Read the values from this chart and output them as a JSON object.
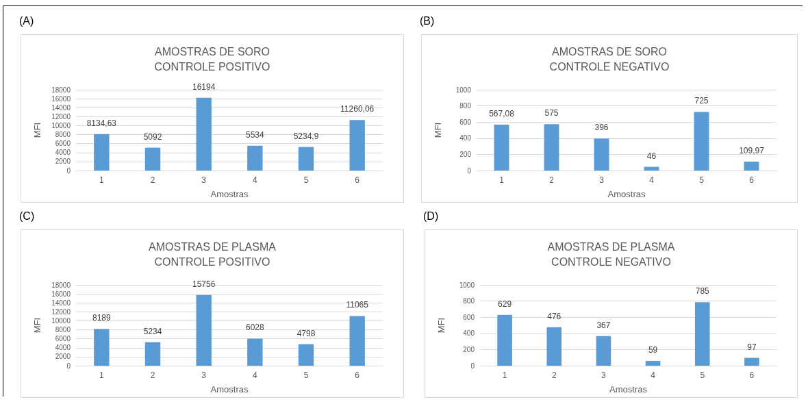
{
  "chart_data": [
    {
      "type": "bar",
      "title": "AMOSTRAS DE SORO\nCONTROLE POSITIVO",
      "xlabel": "Amostras",
      "ylabel": "MFI",
      "annotations": [
        "(A)"
      ],
      "categories": [
        "1",
        "2",
        "3",
        "4",
        "5",
        "6"
      ],
      "values": [
        8134.63,
        5092,
        16194,
        5534,
        5234.9,
        11260.06
      ],
      "value_labels": [
        "8134,63",
        "5092",
        "16194",
        "5534",
        "5234,9",
        "11260,06"
      ],
      "color": "#5b9bd5",
      "ylim": [
        0,
        18000
      ],
      "yticks": [
        0,
        2000,
        4000,
        6000,
        8000,
        10000,
        12000,
        14000,
        16000,
        18000
      ],
      "grid": "y"
    },
    {
      "type": "bar",
      "title": "AMOSTRAS DE SORO\nCONTROLE NEGATIVO",
      "xlabel": "Amostras",
      "ylabel": "MFI",
      "annotations": [
        "(B)"
      ],
      "categories": [
        "1",
        "2",
        "3",
        "4",
        "5",
        "6"
      ],
      "values": [
        567.08,
        575,
        396,
        46,
        725,
        109.97
      ],
      "value_labels": [
        "567,08",
        "575",
        "396",
        "46",
        "725",
        "109,97"
      ],
      "color": "#5b9bd5",
      "ylim": [
        0,
        1000
      ],
      "yticks": [
        0,
        200,
        400,
        600,
        800,
        1000
      ],
      "grid": "y"
    },
    {
      "type": "bar",
      "title": "AMOSTRAS DE PLASMA\nCONTROLE POSITIVO",
      "xlabel": "Amostras",
      "ylabel": "MFI",
      "annotations": [
        "(C)"
      ],
      "categories": [
        "1",
        "2",
        "3",
        "4",
        "5",
        "6"
      ],
      "values": [
        8189,
        5234,
        15756,
        6028,
        4798,
        11065
      ],
      "data_labels": true,
      "color": "#5b9bd5",
      "ylim": [
        0,
        18000
      ],
      "yticks": [
        0,
        2000,
        4000,
        6000,
        8000,
        10000,
        12000,
        14000,
        16000,
        18000
      ],
      "grid": "y"
    },
    {
      "type": "bar",
      "title": "AMOSTRAS DE PLASMA\nCONTROLE NEGATIVO",
      "xlabel": "Amostras",
      "ylabel": "MFI",
      "annotations": [
        "(D)"
      ],
      "categories": [
        "1",
        "2",
        "3",
        "4",
        "5",
        "6"
      ],
      "values": [
        629,
        476,
        367,
        59,
        785,
        97
      ],
      "data_labels": true,
      "color": "#5b9bd5",
      "ylim": [
        0,
        1000
      ],
      "yticks": [
        0,
        200,
        400,
        600,
        800,
        1000
      ],
      "grid": "y"
    }
  ]
}
